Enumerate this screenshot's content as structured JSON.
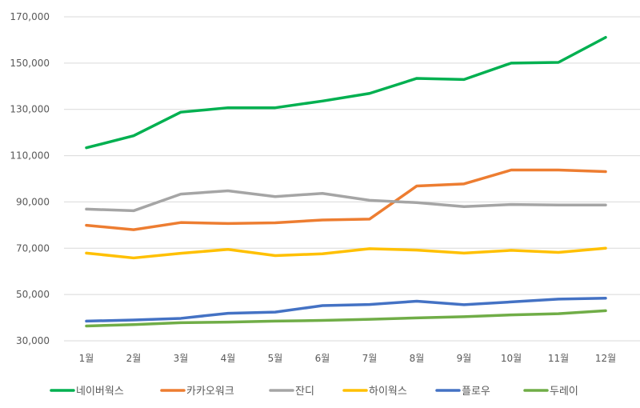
{
  "chart_data": {
    "type": "line",
    "title": "",
    "xlabel": "",
    "ylabel": "",
    "categories": [
      "1월",
      "2월",
      "3월",
      "4월",
      "5월",
      "6월",
      "7월",
      "8월",
      "9월",
      "10월",
      "11월",
      "12월"
    ],
    "ylim": [
      30000,
      170000
    ],
    "yticks": [
      30000,
      50000,
      70000,
      90000,
      110000,
      130000,
      150000,
      170000
    ],
    "ytick_labels": [
      "30,000",
      "50,000",
      "70,000",
      "90,000",
      "110,000",
      "130,000",
      "150,000",
      "170,000"
    ],
    "grid": true,
    "legend_position": "bottom",
    "series": [
      {
        "name": "네이버웍스",
        "color": "#00B050",
        "values": [
          113400,
          118600,
          128800,
          130700,
          130700,
          133600,
          136900,
          143400,
          142900,
          150000,
          150300,
          161100
        ]
      },
      {
        "name": "카카오워크",
        "color": "#ED7D31",
        "values": [
          79900,
          78000,
          81100,
          80700,
          81000,
          82200,
          82600,
          96900,
          97800,
          103800,
          103800,
          103100
        ]
      },
      {
        "name": "잔디",
        "color": "#A5A5A5",
        "values": [
          86900,
          86200,
          93400,
          94800,
          92300,
          93700,
          90700,
          89700,
          88000,
          88900,
          88700,
          88700
        ]
      },
      {
        "name": "하이웍스",
        "color": "#FFC000",
        "values": [
          67900,
          65800,
          67800,
          69500,
          66800,
          67600,
          69800,
          69200,
          67900,
          69100,
          68200,
          70000
        ]
      },
      {
        "name": "플로우",
        "color": "#4472C4",
        "values": [
          38500,
          39000,
          39700,
          41900,
          42400,
          45200,
          45700,
          47100,
          45600,
          46800,
          48000,
          48400
        ]
      },
      {
        "name": "두레이",
        "color": "#70AD47",
        "values": [
          36400,
          37000,
          37800,
          38100,
          38500,
          38800,
          39300,
          39900,
          40400,
          41200,
          41700,
          43000
        ]
      }
    ]
  }
}
